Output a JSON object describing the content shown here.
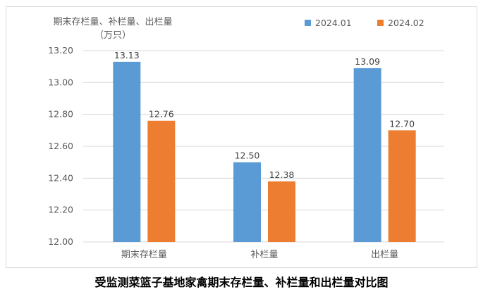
{
  "chart_data": {
    "type": "bar",
    "title": "期末存栏量、补栏量、出栏量",
    "unit": "（万只）",
    "caption": "受监测菜篮子基地家禽期末存栏量、补栏量和出栏量对比图",
    "categories": [
      "期末存栏量",
      "补栏量",
      "出栏量"
    ],
    "series": [
      {
        "name": "2024.01",
        "color": "#5b9bd5",
        "values": [
          13.13,
          12.5,
          13.09
        ]
      },
      {
        "name": "2024.02",
        "color": "#ed7d31",
        "values": [
          12.76,
          12.38,
          12.7
        ]
      }
    ],
    "ylim": [
      12.0,
      13.2
    ],
    "yticks": [
      "12.00",
      "12.20",
      "12.40",
      "12.60",
      "12.80",
      "13.00",
      "13.20"
    ],
    "grid": true,
    "legend": "top-right"
  }
}
